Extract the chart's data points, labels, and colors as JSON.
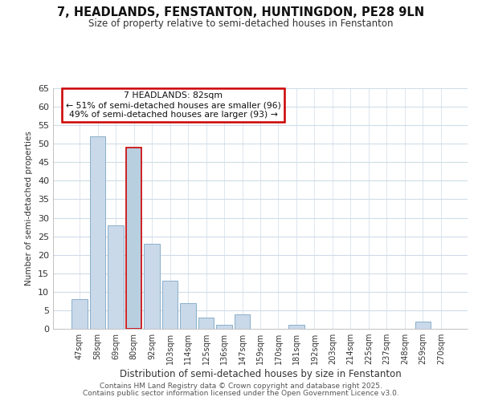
{
  "title": "7, HEADLANDS, FENSTANTON, HUNTINGDON, PE28 9LN",
  "subtitle": "Size of property relative to semi-detached houses in Fenstanton",
  "xlabel": "Distribution of semi-detached houses by size in Fenstanton",
  "ylabel": "Number of semi-detached properties",
  "bar_labels": [
    "47sqm",
    "58sqm",
    "69sqm",
    "80sqm",
    "92sqm",
    "103sqm",
    "114sqm",
    "125sqm",
    "136sqm",
    "147sqm",
    "159sqm",
    "170sqm",
    "181sqm",
    "192sqm",
    "203sqm",
    "214sqm",
    "225sqm",
    "237sqm",
    "248sqm",
    "259sqm",
    "270sqm"
  ],
  "bar_values": [
    8,
    52,
    28,
    49,
    23,
    13,
    7,
    3,
    1,
    4,
    0,
    0,
    1,
    0,
    0,
    0,
    0,
    0,
    0,
    2,
    0
  ],
  "highlight_index": 3,
  "bar_color_normal": "#c9d9ea",
  "bar_color_highlight": "#b8cfe0",
  "bar_edge_color_normal": "#8aafc8",
  "bar_edge_color_highlight": "#cc0000",
  "annotation_title": "7 HEADLANDS: 82sqm",
  "annotation_line1": "← 51% of semi-detached houses are smaller (96)",
  "annotation_line2": "49% of semi-detached houses are larger (93) →",
  "annotation_box_color": "#ffffff",
  "annotation_box_edge": "#cc0000",
  "ylim": [
    0,
    65
  ],
  "yticks": [
    0,
    5,
    10,
    15,
    20,
    25,
    30,
    35,
    40,
    45,
    50,
    55,
    60,
    65
  ],
  "footer1": "Contains HM Land Registry data © Crown copyright and database right 2025.",
  "footer2": "Contains public sector information licensed under the Open Government Licence v3.0.",
  "bg_color": "#ffffff",
  "plot_bg_color": "#ffffff",
  "grid_color": "#d0dce8"
}
